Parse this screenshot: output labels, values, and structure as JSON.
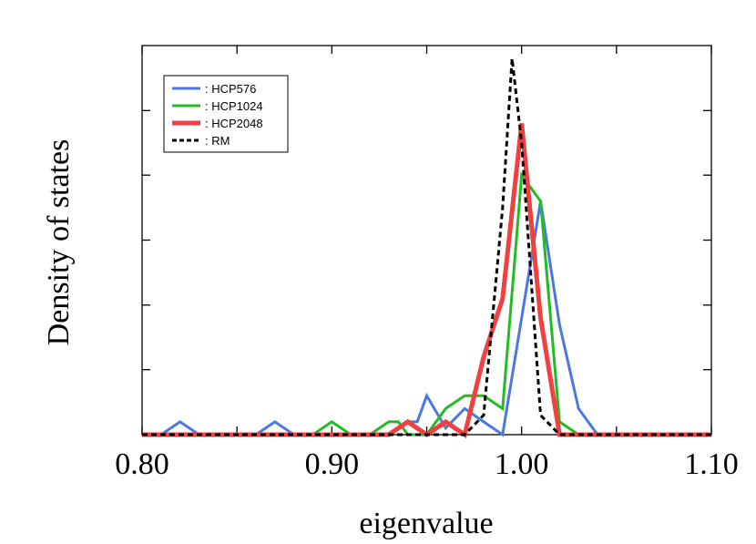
{
  "chart_data": {
    "type": "line",
    "title": "",
    "xlabel": "eigenvalue",
    "ylabel": "Density of states",
    "xlim": [
      0.8,
      1.1
    ],
    "ylim": [
      0,
      1.0
    ],
    "x_ticks": [
      0.8,
      0.85,
      0.9,
      0.95,
      1.0,
      1.05,
      1.1
    ],
    "x_tick_labels": [
      "0.80",
      "",
      "0.90",
      "",
      "1.00",
      "",
      "1.10"
    ],
    "y_ticks": [
      0.167,
      0.333,
      0.5,
      0.667,
      0.833
    ],
    "y_tick_labels_shown": false,
    "grid": false,
    "legend_position": "top-left",
    "series": [
      {
        "name": ": HCP576",
        "color": "#4a78e0",
        "line_style": "solid",
        "line_width": "medium",
        "points": [
          [
            0.8,
            0.0
          ],
          [
            0.81,
            0.0
          ],
          [
            0.82,
            0.033
          ],
          [
            0.83,
            0.0
          ],
          [
            0.86,
            0.0
          ],
          [
            0.87,
            0.033
          ],
          [
            0.88,
            0.0
          ],
          [
            0.93,
            0.0
          ],
          [
            0.94,
            0.033
          ],
          [
            0.945,
            0.033
          ],
          [
            0.95,
            0.1
          ],
          [
            0.96,
            0.017
          ],
          [
            0.97,
            0.067
          ],
          [
            0.98,
            0.033
          ],
          [
            0.99,
            0.0
          ],
          [
            1.0,
            0.3
          ],
          [
            1.01,
            0.6
          ],
          [
            1.02,
            0.283
          ],
          [
            1.03,
            0.067
          ],
          [
            1.04,
            0.0
          ],
          [
            1.1,
            0.0
          ]
        ]
      },
      {
        "name": ": HCP1024",
        "color": "#22bb22",
        "line_style": "solid",
        "line_width": "medium",
        "points": [
          [
            0.8,
            0.0
          ],
          [
            0.89,
            0.0
          ],
          [
            0.9,
            0.033
          ],
          [
            0.91,
            0.0
          ],
          [
            0.92,
            0.0
          ],
          [
            0.93,
            0.033
          ],
          [
            0.935,
            0.033
          ],
          [
            0.94,
            0.0
          ],
          [
            0.95,
            0.0
          ],
          [
            0.96,
            0.067
          ],
          [
            0.97,
            0.1
          ],
          [
            0.98,
            0.1
          ],
          [
            0.99,
            0.067
          ],
          [
            1.0,
            0.667
          ],
          [
            1.01,
            0.6
          ],
          [
            1.02,
            0.033
          ],
          [
            1.03,
            0.0
          ],
          [
            1.1,
            0.0
          ]
        ]
      },
      {
        "name": ": HCP2048",
        "color": "#f04040",
        "line_style": "solid",
        "line_width": "thick",
        "points": [
          [
            0.8,
            0.0
          ],
          [
            0.93,
            0.0
          ],
          [
            0.94,
            0.033
          ],
          [
            0.95,
            0.0
          ],
          [
            0.96,
            0.033
          ],
          [
            0.97,
            0.0
          ],
          [
            0.98,
            0.2
          ],
          [
            0.99,
            0.35
          ],
          [
            1.0,
            0.8
          ],
          [
            1.01,
            0.3
          ],
          [
            1.02,
            0.0
          ],
          [
            1.1,
            0.0
          ]
        ]
      },
      {
        "name": ": RM",
        "color": "#000000",
        "line_style": "dashed",
        "line_width": "medium",
        "points": [
          [
            0.8,
            0.0
          ],
          [
            0.97,
            0.0
          ],
          [
            0.98,
            0.05
          ],
          [
            0.99,
            0.583
          ],
          [
            0.995,
            0.967
          ],
          [
            1.0,
            0.75
          ],
          [
            1.01,
            0.05
          ],
          [
            1.02,
            0.0
          ],
          [
            1.1,
            0.0
          ]
        ]
      }
    ]
  }
}
